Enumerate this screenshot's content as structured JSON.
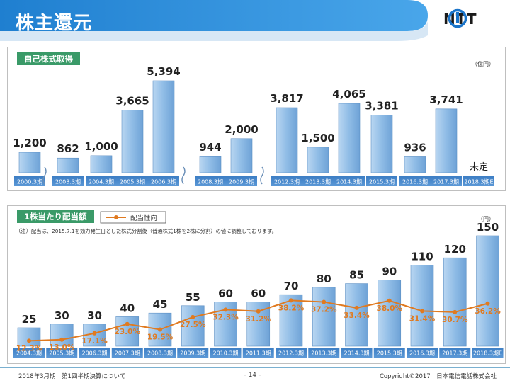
{
  "header": {
    "title": "株主還元",
    "logo_text": "NTT"
  },
  "section1": {
    "tag": "自己株式取得",
    "unit": "（億円）",
    "pending_label": "未定"
  },
  "section2": {
    "tag": "1株当たり配当額",
    "unit": "（円）",
    "legend_label": "配当性向",
    "note": "（注）配当は、2015.7.1を効力発生日とした株式分割後（普通株式1株を2株に分割）の値に調整しております。"
  },
  "footer": {
    "left": "2018年3月期　第1四半期決算について",
    "page": "– 14 –",
    "copyright": "Copyright©2017　日本電信電話株式会社"
  },
  "colors": {
    "header_blue": "#1f7fd0",
    "tag_green": "#3a9a68",
    "bar_blue": "#8fbce6",
    "line_orange": "#e07a20"
  },
  "chart_data": [
    {
      "type": "bar",
      "title": "自己株式取得",
      "ylabel": "（億円）",
      "categories": [
        "2000.3期",
        "2003.3期",
        "2004.3期",
        "2005.3期",
        "2006.3期",
        "2008.3期",
        "2009.3期",
        "2012.3期",
        "2013.3期",
        "2014.3期",
        "2015.3期",
        "2016.3期",
        "2017.3期",
        "2018.3期E"
      ],
      "values": [
        1200,
        862,
        1000,
        3665,
        5394,
        944,
        2000,
        3817,
        1500,
        4065,
        3381,
        936,
        3741,
        null
      ],
      "value_labels": [
        "1,200",
        "862",
        "1,000",
        "3,665",
        "5,394",
        "944",
        "2,000",
        "3,817",
        "1,500",
        "4,065",
        "3,381",
        "936",
        "3,741",
        "未定"
      ],
      "axis_breaks_after": [
        "2000.3期",
        "2006.3期",
        "2009.3期"
      ],
      "ylim": [
        0,
        5394
      ],
      "grid": false
    },
    {
      "type": "bar",
      "title": "1株当たり配当額",
      "ylabel": "（円）",
      "categories": [
        "2004.3期",
        "2005.3期",
        "2006.3期",
        "2007.3期",
        "2008.3期",
        "2009.3期",
        "2010.3期",
        "2011.3期",
        "2012.3期",
        "2013.3期",
        "2014.3期",
        "2015.3期",
        "2016.3期",
        "2017.3期",
        "2018.3期E"
      ],
      "values": [
        25,
        30,
        30,
        40,
        45,
        55,
        60,
        60,
        70,
        80,
        85,
        90,
        110,
        120,
        150
      ],
      "value_labels": [
        "25",
        "30",
        "30",
        "40",
        "45",
        "55",
        "60",
        "60",
        "70",
        "80",
        "85",
        "90",
        "110",
        "120",
        "150"
      ],
      "ylim": [
        0,
        150
      ],
      "line_series": {
        "name": "配当性向",
        "unit": "%",
        "values": [
          12.3,
          13.0,
          17.1,
          23.0,
          19.5,
          27.5,
          32.3,
          31.2,
          38.2,
          37.2,
          33.4,
          38.0,
          31.4,
          30.7,
          36.2
        ],
        "labels": [
          "12.3%",
          "13.0%",
          "17.1%",
          "23.0%",
          "19.5%",
          "27.5%",
          "32.3%",
          "31.2%",
          "38.2%",
          "37.2%",
          "33.4%",
          "38.0%",
          "31.4%",
          "30.7%",
          "36.2%"
        ]
      },
      "legend_position": "top-left",
      "grid": false
    }
  ]
}
